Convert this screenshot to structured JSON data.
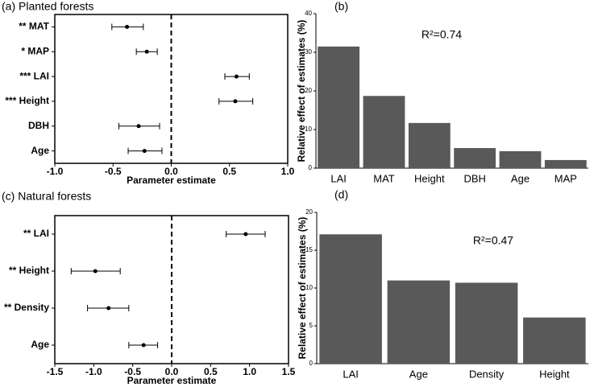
{
  "chart_data": [
    {
      "type": "forest",
      "title": "(a) Planted forests",
      "xlabel": "Parameter estimate",
      "categories": [
        "** MAT",
        "* MAP",
        "*** LAI",
        "*** Height",
        "DBH",
        "Age"
      ],
      "values": [
        -0.38,
        -0.21,
        0.56,
        0.55,
        -0.28,
        -0.23
      ],
      "lower": [
        -0.51,
        -0.3,
        0.46,
        0.41,
        -0.45,
        -0.37
      ],
      "upper": [
        -0.24,
        -0.12,
        0.67,
        0.7,
        -0.1,
        -0.08
      ],
      "color": "#000000",
      "xlim": [
        -1,
        1
      ],
      "xticks": [
        {
          "value": -1,
          "label": "-1.0"
        },
        {
          "value": -0.5,
          "label": "-0.5"
        },
        {
          "value": 0,
          "label": "0.0"
        },
        {
          "value": 0.5,
          "label": "0.5"
        },
        {
          "value": 1,
          "label": "1.0"
        }
      ]
    },
    {
      "type": "bar",
      "title": "(b)",
      "ylabel": "Relative effect of estimates (%)",
      "annotation": "R²=0.74",
      "categories": [
        "LAI",
        "MAT",
        "Height",
        "DBH",
        "Age",
        "MAP"
      ],
      "values": [
        31.5,
        18.7,
        11.7,
        5.2,
        4.4,
        2.1
      ],
      "color": "#595959",
      "ylim": [
        0,
        40
      ],
      "yticks": [
        0,
        10,
        20,
        30,
        40
      ]
    },
    {
      "type": "forest",
      "title": "(c) Natural forests",
      "xlabel": "Parameter estimate",
      "categories": [
        "** LAI",
        "** Height",
        "** Density",
        "Age"
      ],
      "values": [
        0.95,
        -0.98,
        -0.81,
        -0.36
      ],
      "lower": [
        0.7,
        -1.29,
        -1.08,
        -0.55
      ],
      "upper": [
        1.2,
        -0.66,
        -0.55,
        -0.18
      ],
      "color": "#000000",
      "xlim": [
        -1.5,
        1.5
      ],
      "xticks": [
        {
          "value": -1.5,
          "label": "-1.5"
        },
        {
          "value": -1,
          "label": "-1.0"
        },
        {
          "value": -0.5,
          "label": "-0.5"
        },
        {
          "value": 0,
          "label": "0.0"
        },
        {
          "value": 0.5,
          "label": "0.5"
        },
        {
          "value": 1,
          "label": "1.0"
        },
        {
          "value": 1.5,
          "label": "1.5"
        }
      ]
    },
    {
      "type": "bar",
      "title": "(d)",
      "ylabel": "Relative effect of estimates (%)",
      "annotation": "R²=0.47",
      "categories": [
        "LAI",
        "Age",
        "Density",
        "Height"
      ],
      "values": [
        17.1,
        11.0,
        10.7,
        6.1
      ],
      "color": "#595959",
      "ylim": [
        0,
        20
      ],
      "yticks": [
        0,
        5,
        10,
        15,
        20
      ]
    }
  ]
}
